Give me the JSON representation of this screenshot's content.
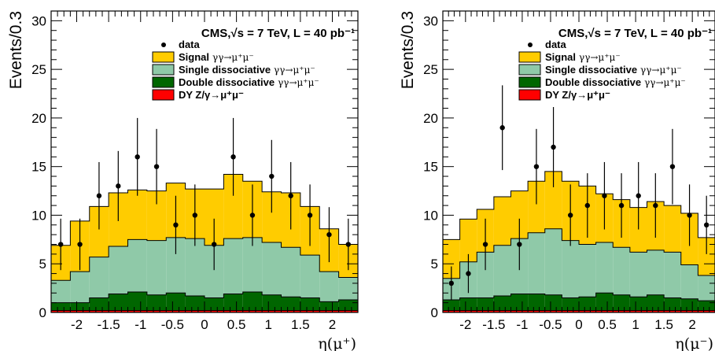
{
  "chart_data": [
    {
      "type": "histogram",
      "title": "CMS,√s = 7 TeV, L = 40 pb⁻¹",
      "xlabel": "η(μ⁺)",
      "ylabel": "Events/0.3",
      "xlim": [
        -2.4,
        2.4
      ],
      "ylim": [
        0,
        31
      ],
      "xticks": [
        "-2",
        "-1.5",
        "-1",
        "-0.5",
        "0",
        "0.5",
        "1",
        "1.5",
        "2"
      ],
      "yticks": [
        "0",
        "5",
        "10",
        "15",
        "20",
        "25",
        "30"
      ],
      "bin_edges": [
        -2.4,
        -2.1,
        -1.8,
        -1.5,
        -1.2,
        -0.9,
        -0.6,
        -0.3,
        0.0,
        0.3,
        0.6,
        0.9,
        1.2,
        1.5,
        1.8,
        2.1,
        2.4
      ],
      "legend": {
        "position": "top-right",
        "entries": [
          {
            "name": "data",
            "marker": "point"
          },
          {
            "name": "Signal",
            "process": "γγ→μ⁺μ⁻",
            "color": "#ffcc00"
          },
          {
            "name": "Single dissociative",
            "process": "γγ→μ⁺μ⁻",
            "color": "#8fc9a8"
          },
          {
            "name": "Double dissociative",
            "process": "γγ→μ⁺μ⁻",
            "color": "#006600"
          },
          {
            "name": "DY Z/γ→μ⁺μ⁻",
            "process": "",
            "color": "#ff0000"
          }
        ]
      },
      "series": [
        {
          "name": "DY Z/γ→μ⁺μ⁻",
          "values": [
            0.2,
            0.2,
            0.2,
            0.2,
            0.2,
            0.2,
            0.2,
            0.2,
            0.2,
            0.2,
            0.2,
            0.2,
            0.2,
            0.2,
            0.2,
            0.2
          ]
        },
        {
          "name": "Double dissociative",
          "values": [
            0.8,
            0.8,
            1.3,
            1.7,
            1.9,
            1.6,
            1.8,
            1.5,
            1.3,
            1.7,
            1.9,
            1.6,
            1.4,
            1.3,
            0.9,
            1.1
          ]
        },
        {
          "name": "Single dissociative",
          "values": [
            2.3,
            3.2,
            4.2,
            4.9,
            5.4,
            5.6,
            5.7,
            5.9,
            5.4,
            5.7,
            5.6,
            5.4,
            5.1,
            4.4,
            3.1,
            2.3
          ]
        },
        {
          "name": "Signal",
          "values": [
            3.6,
            5.2,
            5.2,
            5.5,
            5.1,
            5.1,
            5.6,
            5.1,
            5.8,
            6.6,
            5.8,
            5.2,
            5.6,
            5.0,
            4.4,
            3.4
          ]
        }
      ],
      "data_points": {
        "x": [
          -2.25,
          -1.95,
          -1.65,
          -1.35,
          -1.05,
          -0.75,
          -0.45,
          -0.15,
          0.15,
          0.45,
          0.75,
          1.05,
          1.35,
          1.65,
          1.95,
          2.25
        ],
        "y": [
          7,
          7,
          12,
          13,
          16,
          15,
          9,
          10,
          7,
          16,
          10,
          14,
          12,
          10,
          8,
          7
        ]
      }
    },
    {
      "type": "histogram",
      "title": "CMS,√s = 7 TeV, L = 40 pb⁻¹",
      "xlabel": "η(μ⁻)",
      "ylabel": "Events/0.3",
      "xlim": [
        -2.4,
        2.4
      ],
      "ylim": [
        0,
        31
      ],
      "xticks": [
        "-2",
        "-1.5",
        "-1",
        "-0.5",
        "0",
        "0.5",
        "1",
        "1.5",
        "2"
      ],
      "yticks": [
        "0",
        "5",
        "10",
        "15",
        "20",
        "25",
        "30"
      ],
      "bin_edges": [
        -2.4,
        -2.1,
        -1.8,
        -1.5,
        -1.2,
        -0.9,
        -0.6,
        -0.3,
        0.0,
        0.3,
        0.6,
        0.9,
        1.2,
        1.5,
        1.8,
        2.1,
        2.4
      ],
      "legend": {
        "position": "top-right",
        "entries": [
          {
            "name": "data",
            "marker": "point"
          },
          {
            "name": "Signal",
            "process": "γγ→μ⁺μ⁻",
            "color": "#ffcc00"
          },
          {
            "name": "Single dissociative",
            "process": "γγ→μ⁺μ⁻",
            "color": "#8fc9a8"
          },
          {
            "name": "Double dissociative",
            "process": "γγ→μ⁺μ⁻",
            "color": "#006600"
          },
          {
            "name": "DY Z/γ→μ⁺μ⁻",
            "process": "",
            "color": "#ff0000"
          }
        ]
      },
      "series": [
        {
          "name": "DY Z/γ→μ⁺μ⁻",
          "values": [
            0.2,
            0.2,
            0.2,
            0.2,
            0.2,
            0.2,
            0.2,
            0.2,
            0.2,
            0.2,
            0.2,
            0.2,
            0.2,
            0.2,
            0.2,
            0.2
          ]
        },
        {
          "name": "Double dissociative",
          "values": [
            1.1,
            1.3,
            1.3,
            1.5,
            1.7,
            1.7,
            1.6,
            1.3,
            1.4,
            1.8,
            1.6,
            1.4,
            1.6,
            1.3,
            1.2,
            1.0
          ]
        },
        {
          "name": "Single dissociative",
          "values": [
            2.2,
            3.7,
            4.7,
            5.2,
            5.7,
            6.3,
            6.8,
            5.9,
            5.4,
            5.2,
            4.9,
            4.6,
            4.6,
            4.7,
            3.5,
            2.6
          ]
        },
        {
          "name": "Signal",
          "values": [
            4.0,
            4.4,
            4.4,
            5.0,
            4.9,
            5.3,
            5.9,
            6.1,
            6.0,
            5.0,
            4.9,
            4.6,
            5.0,
            4.8,
            5.3,
            3.9
          ]
        }
      ],
      "data_points": {
        "x": [
          -2.25,
          -1.95,
          -1.65,
          -1.35,
          -1.05,
          -0.75,
          -0.45,
          -0.15,
          0.15,
          0.45,
          0.75,
          1.05,
          1.35,
          1.65,
          1.95,
          2.25
        ],
        "y": [
          3,
          4,
          7,
          19,
          7,
          15,
          17,
          10,
          11,
          12,
          11,
          12,
          11,
          15,
          10,
          9
        ]
      }
    }
  ]
}
